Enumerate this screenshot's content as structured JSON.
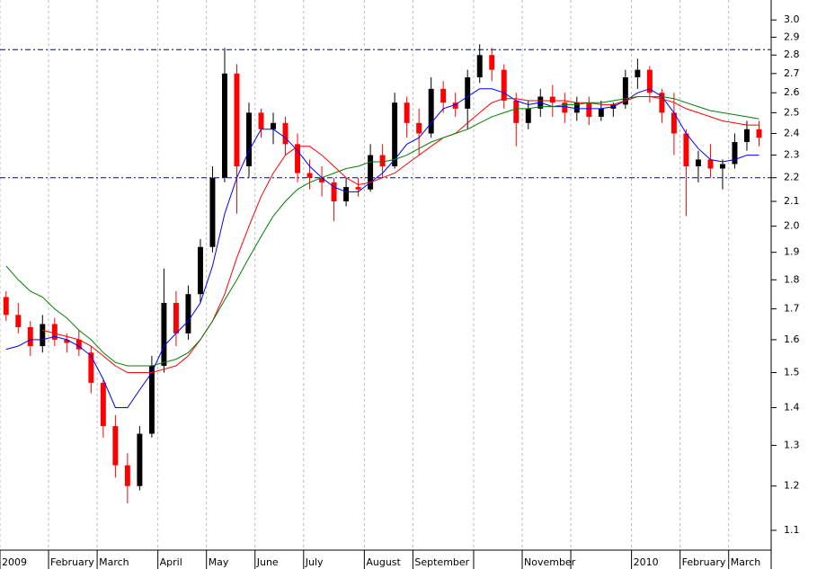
{
  "chart_data": {
    "type": "candlestick",
    "categories": [
      "2009",
      null,
      null,
      null,
      "February",
      null,
      null,
      null,
      "March",
      null,
      null,
      null,
      null,
      "April",
      null,
      null,
      null,
      "May",
      null,
      null,
      null,
      "June",
      null,
      null,
      null,
      "July",
      null,
      null,
      null,
      null,
      "August",
      null,
      null,
      null,
      "September",
      null,
      null,
      null,
      null,
      null,
      null,
      null,
      null,
      "November",
      null,
      null,
      null,
      null,
      null,
      null,
      null,
      null,
      "2010",
      null,
      null,
      null,
      "February",
      null,
      null,
      null,
      "March",
      null,
      null
    ],
    "month_starts": [
      0,
      4,
      8,
      13,
      17,
      21,
      25,
      30,
      34,
      39,
      43,
      47,
      52,
      56,
      60
    ],
    "open": [
      1.74,
      1.68,
      1.64,
      1.58,
      1.65,
      1.6,
      1.6,
      1.56,
      1.47,
      1.35,
      1.25,
      1.2,
      1.33,
      1.52,
      1.72,
      1.62,
      1.75,
      1.92,
      2.2,
      2.7,
      2.25,
      2.5,
      2.42,
      2.45,
      2.35,
      2.22,
      2.2,
      2.18,
      2.1,
      2.16,
      2.15,
      2.3,
      2.25,
      2.55,
      2.45,
      2.4,
      2.62,
      2.55,
      2.52,
      2.68,
      2.8,
      2.72,
      2.56,
      2.45,
      2.52,
      2.58,
      2.55,
      2.5,
      2.55,
      2.48,
      2.52,
      2.54,
      2.68,
      2.72,
      2.6,
      2.5,
      2.4,
      2.25,
      2.28,
      2.24,
      2.26,
      2.36,
      2.42
    ],
    "high": [
      1.76,
      1.72,
      1.66,
      1.68,
      1.67,
      1.62,
      1.63,
      1.58,
      1.48,
      1.38,
      1.28,
      1.35,
      1.55,
      1.84,
      1.76,
      1.78,
      1.95,
      2.25,
      2.84,
      2.75,
      2.55,
      2.52,
      2.5,
      2.48,
      2.4,
      2.28,
      2.25,
      2.2,
      2.2,
      2.2,
      2.35,
      2.35,
      2.6,
      2.58,
      2.52,
      2.68,
      2.66,
      2.6,
      2.72,
      2.86,
      2.84,
      2.75,
      2.6,
      2.56,
      2.62,
      2.64,
      2.6,
      2.58,
      2.58,
      2.56,
      2.55,
      2.72,
      2.78,
      2.74,
      2.62,
      2.6,
      2.42,
      2.32,
      2.35,
      2.28,
      2.4,
      2.46,
      2.46
    ],
    "low": [
      1.66,
      1.62,
      1.55,
      1.56,
      1.58,
      1.56,
      1.55,
      1.44,
      1.32,
      1.22,
      1.16,
      1.19,
      1.32,
      1.5,
      1.58,
      1.6,
      1.72,
      1.9,
      2.18,
      2.05,
      2.2,
      2.38,
      2.35,
      2.3,
      2.18,
      2.15,
      2.12,
      2.02,
      2.08,
      2.12,
      2.14,
      2.2,
      2.24,
      2.38,
      2.3,
      2.38,
      2.5,
      2.48,
      2.42,
      2.65,
      2.66,
      2.52,
      2.34,
      2.42,
      2.48,
      2.48,
      2.45,
      2.46,
      2.44,
      2.46,
      2.48,
      2.52,
      2.62,
      2.55,
      2.45,
      2.3,
      2.04,
      2.18,
      2.2,
      2.15,
      2.24,
      2.32,
      2.34
    ],
    "close": [
      1.68,
      1.64,
      1.58,
      1.65,
      1.6,
      1.59,
      1.57,
      1.47,
      1.35,
      1.25,
      1.2,
      1.33,
      1.52,
      1.72,
      1.62,
      1.75,
      1.92,
      2.2,
      2.7,
      2.25,
      2.5,
      2.42,
      2.45,
      2.35,
      2.22,
      2.2,
      2.18,
      2.1,
      2.16,
      2.15,
      2.3,
      2.25,
      2.55,
      2.45,
      2.4,
      2.62,
      2.55,
      2.52,
      2.68,
      2.8,
      2.72,
      2.56,
      2.45,
      2.52,
      2.58,
      2.55,
      2.5,
      2.55,
      2.48,
      2.52,
      2.54,
      2.68,
      2.72,
      2.6,
      2.5,
      2.4,
      2.25,
      2.28,
      2.24,
      2.26,
      2.36,
      2.42,
      2.38
    ],
    "up_color": "#000000",
    "down_color": "#ff0000",
    "series": [
      {
        "color": "#0000ff",
        "values": [
          1.57,
          1.58,
          1.6,
          1.6,
          1.61,
          1.6,
          1.58,
          1.55,
          1.48,
          1.4,
          1.4,
          1.45,
          1.5,
          1.58,
          1.62,
          1.66,
          1.72,
          1.85,
          2.05,
          2.2,
          2.32,
          2.42,
          2.42,
          2.38,
          2.32,
          2.25,
          2.2,
          2.16,
          2.14,
          2.14,
          2.18,
          2.22,
          2.28,
          2.35,
          2.38,
          2.45,
          2.52,
          2.54,
          2.58,
          2.62,
          2.62,
          2.6,
          2.56,
          2.54,
          2.55,
          2.53,
          2.53,
          2.52,
          2.52,
          2.52,
          2.53,
          2.56,
          2.6,
          2.62,
          2.58,
          2.5,
          2.4,
          2.33,
          2.28,
          2.27,
          2.28,
          2.3,
          2.3
        ]
      },
      {
        "color": "#ff0000",
        "values": [
          null,
          null,
          null,
          1.63,
          1.62,
          1.61,
          1.6,
          1.58,
          1.55,
          1.52,
          1.5,
          1.5,
          1.5,
          1.51,
          1.52,
          1.55,
          1.6,
          1.66,
          1.75,
          1.88,
          2.0,
          2.12,
          2.22,
          2.3,
          2.34,
          2.34,
          2.3,
          2.25,
          2.2,
          2.17,
          2.18,
          2.2,
          2.22,
          2.26,
          2.3,
          2.34,
          2.38,
          2.4,
          2.45,
          2.5,
          2.55,
          2.57,
          2.57,
          2.56,
          2.56,
          2.56,
          2.56,
          2.55,
          2.55,
          2.54,
          2.54,
          2.56,
          2.58,
          2.58,
          2.57,
          2.55,
          2.52,
          2.5,
          2.48,
          2.46,
          2.45,
          2.44,
          2.44
        ]
      },
      {
        "color": "#008000",
        "values": [
          1.85,
          1.8,
          1.76,
          1.74,
          1.7,
          1.67,
          1.63,
          1.6,
          1.56,
          1.53,
          1.52,
          1.52,
          1.52,
          1.53,
          1.54,
          1.56,
          1.6,
          1.66,
          1.73,
          1.8,
          1.88,
          1.96,
          2.04,
          2.1,
          2.15,
          2.18,
          2.2,
          2.22,
          2.24,
          2.25,
          2.27,
          2.27,
          2.28,
          2.3,
          2.33,
          2.36,
          2.38,
          2.4,
          2.42,
          2.45,
          2.48,
          2.5,
          2.52,
          2.52,
          2.53,
          2.53,
          2.54,
          2.54,
          2.55,
          2.55,
          2.56,
          2.57,
          2.58,
          2.58,
          2.58,
          2.57,
          2.55,
          2.53,
          2.51,
          2.5,
          2.49,
          2.48,
          2.47
        ]
      }
    ],
    "reference_lines": [
      2.83,
      2.2
    ],
    "reference_color": "#000080",
    "log_scale": true,
    "ylim": [
      1.058,
      3.12
    ],
    "yticks": [
      1.1,
      1.2,
      1.3,
      1.4,
      1.5,
      1.6,
      1.7,
      1.8,
      1.9,
      {
        "value": 2,
        "label": "2.0"
      },
      2.1,
      2.2,
      2.3,
      2.4,
      2.5,
      2.6,
      2.7,
      2.8,
      2.9,
      {
        "value": 3,
        "label": "3.0"
      }
    ],
    "grid": true
  }
}
